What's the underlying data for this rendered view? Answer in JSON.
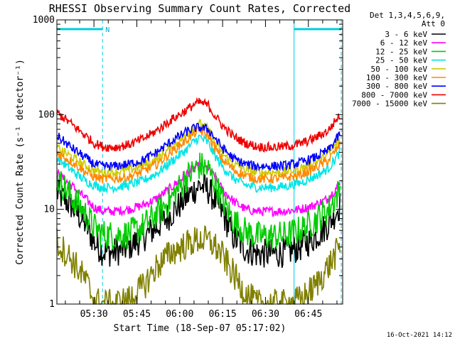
{
  "chart_data": {
    "type": "line",
    "title": "RHESSI Observing Summary Count Rates, Corrected",
    "xlabel": "Start Time (18-Sep-07 05:17:02)",
    "ylabel": "Corrected Count Rate (s⁻¹ detector⁻¹)",
    "y_scale": "log",
    "ylim": [
      1,
      1000
    ],
    "xlim": [
      "05:17:02",
      "06:57:00"
    ],
    "y_ticks": [
      "1",
      "10",
      "100",
      "1000"
    ],
    "x_ticks": [
      "05:30",
      "05:45",
      "06:00",
      "06:15",
      "06:30",
      "06:45"
    ],
    "legend_header": [
      "Det 1,3,4,5,6,9,",
      "Att 0"
    ],
    "footer_timestamp": "16-Oct-2021 14:12",
    "flag_label": "N",
    "night_intervals": [
      [
        "05:17:02",
        "05:33:00"
      ],
      [
        "06:40:00",
        "06:56:30"
      ]
    ],
    "x_minutes": [
      0,
      5,
      10,
      13,
      16,
      20,
      25,
      30,
      35,
      40,
      45,
      48,
      50,
      53,
      55,
      58,
      62,
      66,
      70,
      75,
      80,
      85,
      90,
      95,
      99
    ],
    "series": [
      {
        "name": "3 - 6 keV",
        "color": "#000000",
        "values": [
          15,
          11,
          7,
          4.5,
          3.6,
          3.5,
          4,
          5,
          6.5,
          9,
          13,
          16,
          18,
          16,
          13,
          9,
          5,
          3.8,
          3.4,
          3.4,
          3.5,
          4,
          5,
          7,
          11
        ]
      },
      {
        "name": "6 - 12 keV",
        "color": "#ff00ff",
        "values": [
          24,
          18,
          13,
          10.5,
          9.6,
          9.5,
          10,
          11,
          13,
          17,
          23,
          27,
          29,
          27,
          22,
          16,
          12,
          10,
          9.5,
          9.5,
          9.6,
          10,
          11,
          13,
          19
        ]
      },
      {
        "name": "12 - 25 keV",
        "color": "#00cc00",
        "values": [
          21,
          14,
          9,
          6.5,
          5.5,
          5.3,
          5.5,
          6.5,
          9,
          13,
          21,
          26,
          29,
          26,
          20,
          12,
          7.5,
          5.8,
          5.2,
          5.2,
          5.3,
          6,
          7.5,
          10,
          16
        ]
      },
      {
        "name": "25 - 50 keV",
        "color": "#00e5e5",
        "values": [
          35,
          26,
          20,
          18,
          17,
          17,
          18,
          20,
          24,
          32,
          42,
          52,
          58,
          50,
          38,
          28,
          21,
          18,
          17,
          17,
          17.5,
          19,
          22,
          27,
          40
        ]
      },
      {
        "name": "50 - 100 keV",
        "color": "#cccc00",
        "values": [
          45,
          36,
          29,
          26,
          24.5,
          24.5,
          26,
          29,
          34,
          45,
          60,
          75,
          80,
          70,
          52,
          38,
          30,
          26,
          24.5,
          24.5,
          25,
          27,
          31,
          38,
          55
        ]
      },
      {
        "name": "100 - 300 keV",
        "color": "#ff8800",
        "values": [
          40,
          32,
          25,
          22,
          21,
          21,
          22,
          25,
          30,
          40,
          53,
          63,
          68,
          60,
          46,
          33,
          26,
          22.5,
          21,
          21,
          21.5,
          23,
          27,
          33,
          48
        ]
      },
      {
        "name": "300 - 800 keV",
        "color": "#0000ff",
        "values": [
          60,
          45,
          35,
          30,
          28.5,
          28.5,
          30,
          33,
          40,
          52,
          65,
          72,
          73,
          70,
          58,
          44,
          34,
          30,
          28.5,
          28.5,
          29,
          31,
          35,
          42,
          62
        ]
      },
      {
        "name": "800 - 7000 keV",
        "color": "#ee0000",
        "values": [
          105,
          80,
          60,
          50,
          46,
          45,
          48,
          55,
          68,
          88,
          110,
          128,
          135,
          125,
          100,
          76,
          58,
          50,
          46,
          45,
          46,
          49,
          56,
          68,
          100
        ]
      },
      {
        "name": "7000 - 15000 keV",
        "color": "#808000",
        "values": [
          4.5,
          3,
          1.8,
          1.1,
          1,
          1,
          1.1,
          1.5,
          2.5,
          3.5,
          4.2,
          4.6,
          4.8,
          4.6,
          4.2,
          3.2,
          2,
          1.3,
          1,
          1,
          1,
          1.1,
          1.5,
          2.5,
          4
        ]
      }
    ]
  }
}
